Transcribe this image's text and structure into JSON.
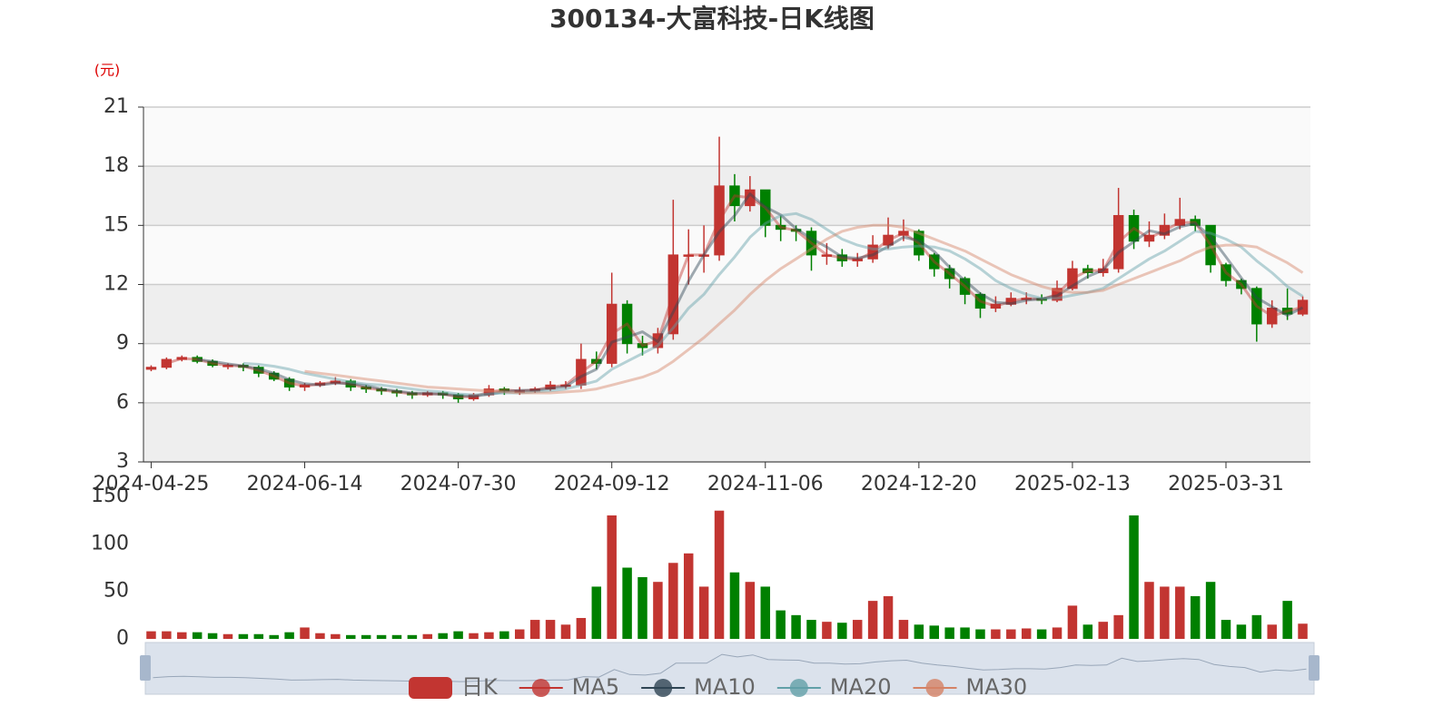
{
  "chart_data": {
    "type": "candlestick",
    "title": "300134-大富科技-日K线图",
    "y_unit": "(元)",
    "candle_name": "日K",
    "up_color": "#c23531",
    "down_color": "#008000",
    "grid": true,
    "ylim": [
      3,
      21
    ],
    "yticks": [
      3,
      6,
      9,
      12,
      15,
      18,
      21
    ],
    "categories": [
      "2024-04-25",
      null,
      null,
      null,
      null,
      null,
      null,
      null,
      null,
      null,
      "2024-06-14",
      null,
      null,
      null,
      null,
      null,
      null,
      null,
      null,
      null,
      "2024-07-30",
      null,
      null,
      null,
      null,
      null,
      null,
      null,
      null,
      null,
      "2024-09-12",
      null,
      null,
      null,
      null,
      null,
      null,
      null,
      null,
      null,
      "2024-11-06",
      null,
      null,
      null,
      null,
      null,
      null,
      null,
      null,
      null,
      "2024-12-20",
      null,
      null,
      null,
      null,
      null,
      null,
      null,
      null,
      null,
      "2025-02-13",
      null,
      null,
      null,
      null,
      null,
      null,
      null,
      null,
      null,
      "2025-03-31",
      null,
      null,
      null,
      null,
      null
    ],
    "open": [
      7.7,
      7.8,
      8.2,
      8.3,
      8.1,
      7.9,
      7.9,
      7.8,
      7.5,
      7.2,
      6.8,
      6.9,
      7.0,
      7.1,
      6.8,
      6.7,
      6.6,
      6.5,
      6.4,
      6.5,
      6.4,
      6.2,
      6.4,
      6.7,
      6.6,
      6.6,
      6.7,
      6.9,
      6.9,
      8.2,
      8.0,
      11.0,
      9.0,
      8.8,
      9.5,
      13.5,
      13.5,
      13.5,
      17.0,
      16.0,
      16.8,
      15.0,
      14.8,
      14.7,
      13.5,
      13.5,
      13.2,
      13.3,
      14.0,
      14.5,
      14.7,
      13.5,
      12.8,
      12.3,
      11.5,
      10.8,
      11.0,
      11.3,
      11.3,
      11.2,
      11.8,
      12.8,
      12.6,
      12.8,
      15.5,
      14.2,
      14.5,
      15.0,
      15.3,
      15.0,
      13.0,
      12.2,
      11.8,
      10.0,
      10.8,
      10.5
    ],
    "close": [
      7.8,
      8.2,
      8.3,
      8.1,
      7.9,
      7.9,
      7.8,
      7.5,
      7.2,
      6.8,
      6.9,
      7.0,
      7.1,
      6.8,
      6.7,
      6.6,
      6.5,
      6.4,
      6.5,
      6.4,
      6.2,
      6.4,
      6.7,
      6.6,
      6.6,
      6.7,
      6.9,
      6.9,
      8.2,
      8.0,
      11.0,
      9.0,
      8.8,
      9.5,
      13.5,
      13.5,
      13.5,
      17.0,
      16.0,
      16.8,
      15.0,
      14.8,
      14.7,
      13.5,
      13.5,
      13.2,
      13.3,
      14.0,
      14.5,
      14.7,
      13.5,
      12.8,
      12.3,
      11.5,
      10.8,
      11.0,
      11.3,
      11.3,
      11.2,
      11.8,
      12.8,
      12.6,
      12.8,
      15.5,
      14.2,
      14.5,
      15.0,
      15.3,
      15.0,
      13.0,
      12.2,
      11.8,
      10.0,
      10.8,
      10.5,
      11.2
    ],
    "low": [
      7.6,
      7.7,
      8.1,
      8.0,
      7.8,
      7.7,
      7.6,
      7.3,
      7.1,
      6.6,
      6.6,
      6.8,
      6.9,
      6.6,
      6.5,
      6.4,
      6.3,
      6.2,
      6.3,
      6.2,
      6.0,
      6.1,
      6.3,
      6.4,
      6.4,
      6.5,
      6.6,
      6.7,
      6.7,
      7.7,
      7.8,
      8.5,
      8.4,
      8.5,
      9.2,
      12.0,
      12.6,
      13.2,
      15.2,
      15.7,
      14.4,
      14.2,
      14.2,
      12.7,
      13.0,
      12.9,
      12.9,
      13.1,
      13.8,
      14.2,
      13.2,
      12.4,
      11.8,
      11.0,
      10.3,
      10.6,
      10.9,
      11.0,
      11.0,
      11.1,
      11.7,
      12.3,
      12.4,
      12.6,
      13.8,
      13.9,
      14.3,
      14.8,
      14.7,
      12.6,
      11.9,
      11.5,
      9.1,
      9.8,
      10.2,
      10.4
    ],
    "high": [
      7.9,
      8.3,
      8.4,
      8.4,
      8.2,
      8.0,
      8.0,
      7.9,
      7.6,
      7.3,
      7.0,
      7.1,
      7.3,
      7.2,
      6.9,
      6.8,
      6.7,
      6.6,
      6.6,
      6.6,
      6.5,
      6.5,
      6.9,
      6.8,
      6.8,
      6.8,
      7.1,
      7.1,
      9.0,
      8.6,
      12.6,
      11.2,
      9.4,
      9.8,
      16.3,
      14.8,
      15.0,
      19.5,
      17.6,
      17.5,
      16.8,
      15.5,
      15.0,
      14.9,
      14.1,
      13.8,
      13.6,
      14.5,
      15.4,
      15.3,
      14.8,
      13.6,
      13.0,
      12.4,
      11.6,
      11.4,
      11.6,
      11.6,
      11.5,
      12.2,
      13.2,
      13.0,
      13.3,
      16.9,
      15.8,
      15.2,
      15.6,
      16.4,
      15.5,
      15.0,
      13.1,
      12.3,
      11.9,
      11.2,
      11.8,
      11.4
    ],
    "series": [
      {
        "name": "MA5",
        "color": "#c23531",
        "values": [
          null,
          8.0,
          8.25,
          8.2,
          8.0,
          7.9,
          7.85,
          7.65,
          7.35,
          7.0,
          6.85,
          6.95,
          7.05,
          6.95,
          6.75,
          6.65,
          6.55,
          6.45,
          6.45,
          6.45,
          6.3,
          6.3,
          6.55,
          6.65,
          6.6,
          6.65,
          6.8,
          6.9,
          7.55,
          8.1,
          9.5,
          10.0,
          8.9,
          9.15,
          11.5,
          13.5,
          13.5,
          15.25,
          16.5,
          16.4,
          15.9,
          14.9,
          14.75,
          14.1,
          13.5,
          13.35,
          13.25,
          13.65,
          14.25,
          14.6,
          14.1,
          13.15,
          12.55,
          11.9,
          11.15,
          10.9,
          11.15,
          11.3,
          11.25,
          11.5,
          12.3,
          12.7,
          12.7,
          14.15,
          14.85,
          14.35,
          14.75,
          15.15,
          15.15,
          14.0,
          12.6,
          12.0,
          10.9,
          10.4,
          10.65,
          10.85
        ]
      },
      {
        "name": "MA10",
        "color": "#2f4554",
        "values": [
          null,
          null,
          null,
          8.2,
          8.1,
          7.97,
          7.87,
          7.73,
          7.5,
          7.17,
          6.97,
          6.9,
          7.0,
          6.97,
          6.87,
          6.7,
          6.6,
          6.5,
          6.47,
          6.43,
          6.37,
          6.33,
          6.43,
          6.57,
          6.63,
          6.63,
          6.73,
          6.83,
          7.33,
          7.7,
          9.07,
          9.33,
          9.6,
          9.1,
          10.6,
          12.17,
          13.5,
          14.67,
          15.5,
          16.6,
          15.93,
          15.53,
          14.83,
          14.33,
          13.9,
          13.4,
          13.33,
          13.5,
          13.93,
          14.4,
          14.23,
          13.67,
          12.87,
          12.2,
          11.53,
          11.1,
          11.03,
          11.2,
          11.27,
          11.43,
          11.93,
          12.4,
          12.73,
          13.63,
          14.17,
          14.73,
          14.57,
          14.93,
          15.1,
          14.43,
          13.4,
          12.33,
          11.33,
          10.87,
          10.43,
          10.83
        ]
      },
      {
        "name": "MA20",
        "color": "#61a0a8",
        "values": [
          null,
          null,
          null,
          null,
          null,
          null,
          8.0,
          7.95,
          7.85,
          7.7,
          7.5,
          7.35,
          7.2,
          7.05,
          6.95,
          6.9,
          6.8,
          6.7,
          6.6,
          6.55,
          6.45,
          6.4,
          6.45,
          6.5,
          6.5,
          6.55,
          6.6,
          6.7,
          6.9,
          7.1,
          7.7,
          8.1,
          8.5,
          8.9,
          9.8,
          10.8,
          11.5,
          12.5,
          13.4,
          14.4,
          15.1,
          15.5,
          15.6,
          15.3,
          14.8,
          14.3,
          14.0,
          13.8,
          13.8,
          13.9,
          13.95,
          13.9,
          13.7,
          13.3,
          12.8,
          12.2,
          11.8,
          11.5,
          11.3,
          11.3,
          11.45,
          11.6,
          11.8,
          12.3,
          12.8,
          13.3,
          13.7,
          14.2,
          14.7,
          14.6,
          14.3,
          13.9,
          13.2,
          12.6,
          11.9,
          11.4
        ]
      },
      {
        "name": "MA30",
        "color": "#d48265",
        "values": [
          null,
          null,
          null,
          null,
          null,
          null,
          null,
          null,
          null,
          null,
          7.6,
          7.5,
          7.4,
          7.3,
          7.2,
          7.1,
          7.0,
          6.9,
          6.8,
          6.75,
          6.7,
          6.65,
          6.6,
          6.55,
          6.5,
          6.5,
          6.5,
          6.55,
          6.6,
          6.7,
          6.9,
          7.1,
          7.3,
          7.6,
          8.1,
          8.7,
          9.3,
          10.0,
          10.7,
          11.5,
          12.2,
          12.8,
          13.3,
          13.8,
          14.3,
          14.7,
          14.9,
          15.0,
          15.0,
          14.9,
          14.6,
          14.3,
          14.0,
          13.7,
          13.3,
          12.9,
          12.5,
          12.2,
          11.9,
          11.7,
          11.6,
          11.6,
          11.7,
          12.0,
          12.3,
          12.6,
          12.9,
          13.2,
          13.6,
          13.9,
          14.0,
          14.0,
          13.9,
          13.5,
          13.1,
          12.6
        ]
      }
    ],
    "volume": {
      "ylim": [
        0,
        150
      ],
      "yticks": [
        0,
        50,
        100,
        150
      ],
      "values": [
        8,
        8,
        7,
        7,
        6,
        5,
        5,
        5,
        4,
        7,
        12,
        6,
        5,
        4,
        4,
        4,
        4,
        4,
        5,
        6,
        8,
        6,
        7,
        8,
        10,
        20,
        20,
        15,
        22,
        55,
        130,
        75,
        65,
        60,
        80,
        90,
        55,
        135,
        70,
        60,
        55,
        30,
        25,
        20,
        18,
        17,
        20,
        40,
        45,
        20,
        15,
        14,
        12,
        12,
        10,
        10,
        10,
        11,
        10,
        12,
        35,
        15,
        18,
        25,
        130,
        60,
        55,
        55,
        45,
        60,
        20,
        15,
        25,
        15,
        40,
        16
      ]
    }
  }
}
